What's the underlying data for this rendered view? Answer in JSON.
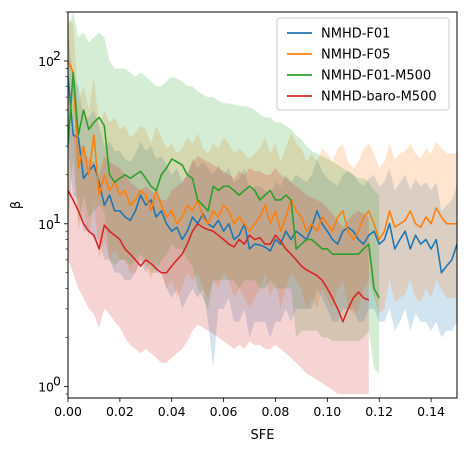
{
  "chart_data": {
    "type": "line",
    "xlabel": "SFE",
    "ylabel": "β",
    "xlim": [
      0.0,
      0.15
    ],
    "ylim": [
      0.85,
      200
    ],
    "yscale": "log",
    "xticks": [
      0.0,
      0.02,
      0.04,
      0.06,
      0.08,
      0.1,
      0.12,
      0.14
    ],
    "xtick_labels": [
      "0.00",
      "0.02",
      "0.04",
      "0.06",
      "0.08",
      "0.10",
      "0.12",
      "0.14"
    ],
    "yticks": [
      1,
      10,
      100
    ],
    "ytick_labels": [
      "10",
      "10",
      "10"
    ],
    "ytick_exponents": [
      "0",
      "1",
      "2"
    ],
    "grid": false,
    "legend_position": "top-right",
    "series": [
      {
        "name": "NMHD-F01",
        "color": "#1f77b4",
        "x": [
          0.0,
          0.002,
          0.004,
          0.006,
          0.008,
          0.01,
          0.012,
          0.014,
          0.016,
          0.018,
          0.02,
          0.022,
          0.024,
          0.026,
          0.028,
          0.03,
          0.032,
          0.034,
          0.036,
          0.038,
          0.04,
          0.042,
          0.044,
          0.046,
          0.048,
          0.05,
          0.052,
          0.054,
          0.056,
          0.058,
          0.06,
          0.062,
          0.064,
          0.066,
          0.068,
          0.07,
          0.072,
          0.074,
          0.076,
          0.078,
          0.08,
          0.082,
          0.084,
          0.086,
          0.088,
          0.09,
          0.092,
          0.094,
          0.096,
          0.098,
          0.1,
          0.102,
          0.104,
          0.106,
          0.108,
          0.11,
          0.112,
          0.114,
          0.116,
          0.118,
          0.12,
          0.122,
          0.124,
          0.126,
          0.128,
          0.13,
          0.132,
          0.134,
          0.136,
          0.138,
          0.14,
          0.142,
          0.144,
          0.146,
          0.148,
          0.15
        ],
        "values": [
          80,
          35,
          34,
          19,
          21,
          23,
          18,
          13,
          15,
          12,
          12,
          11,
          10.5,
          12,
          15,
          13,
          14,
          11,
          12,
          10,
          9,
          9.5,
          8,
          9,
          11,
          10,
          11.5,
          10,
          9.5,
          10.5,
          9,
          10,
          8,
          8.5,
          10,
          7,
          7.5,
          7.4,
          7.2,
          6.8,
          8,
          7.5,
          9,
          8,
          9,
          8.5,
          8,
          9.5,
          12,
          10,
          9,
          8,
          7.5,
          9,
          9.5,
          9,
          8,
          7.5,
          8.5,
          9,
          7.5,
          8,
          10,
          7,
          8,
          9,
          7,
          8.5,
          7.5,
          8,
          7,
          8,
          5,
          5.5,
          6,
          7.5
        ],
        "lower": [
          30,
          15,
          14,
          9,
          9,
          8,
          8,
          6,
          6,
          5,
          5,
          4.5,
          4.5,
          5,
          6,
          5,
          6,
          5,
          5,
          4,
          3.5,
          4,
          3,
          3.5,
          4,
          3.5,
          4,
          2.5,
          1.3,
          3,
          3,
          3.5,
          2.5,
          2.5,
          3,
          2,
          2.5,
          2.5,
          2.5,
          2,
          2.5,
          2.5,
          3,
          2.5,
          3,
          3,
          3,
          3,
          4,
          3.5,
          3,
          2.5,
          2.5,
          3,
          3,
          3,
          2.5,
          2.5,
          3,
          3,
          2.5,
          2.5,
          3,
          2.2,
          2.5,
          3,
          2.2,
          2.8,
          2.5,
          2.5,
          2.2,
          2.5,
          2,
          2.2,
          2.2,
          2.5
        ],
        "upper": [
          150,
          80,
          70,
          45,
          45,
          50,
          40,
          30,
          32,
          28,
          28,
          25,
          24,
          27,
          32,
          28,
          30,
          25,
          26,
          23,
          20,
          22,
          18,
          20,
          25,
          22,
          24,
          22,
          20,
          23,
          20,
          22,
          18,
          19,
          22,
          16,
          17,
          17,
          16,
          15,
          18,
          17,
          20,
          18,
          20,
          19,
          18,
          20,
          25,
          21,
          19,
          18,
          17,
          20,
          21,
          20,
          18,
          17,
          19,
          20,
          17,
          18,
          22,
          16,
          18,
          20,
          16,
          19,
          17,
          18,
          16,
          18,
          12,
          13,
          14,
          17
        ]
      },
      {
        "name": "NMHD-F05",
        "color": "#ff7f0e",
        "x": [
          0.0,
          0.002,
          0.004,
          0.006,
          0.008,
          0.01,
          0.012,
          0.014,
          0.016,
          0.018,
          0.02,
          0.022,
          0.024,
          0.026,
          0.028,
          0.03,
          0.032,
          0.034,
          0.036,
          0.038,
          0.04,
          0.042,
          0.044,
          0.046,
          0.048,
          0.05,
          0.052,
          0.054,
          0.056,
          0.058,
          0.06,
          0.062,
          0.064,
          0.066,
          0.068,
          0.07,
          0.072,
          0.074,
          0.076,
          0.078,
          0.08,
          0.082,
          0.084,
          0.086,
          0.088,
          0.09,
          0.092,
          0.094,
          0.096,
          0.098,
          0.1,
          0.102,
          0.104,
          0.106,
          0.108,
          0.11,
          0.112,
          0.114,
          0.116,
          0.118,
          0.12,
          0.122,
          0.124,
          0.126,
          0.128,
          0.13,
          0.132,
          0.134,
          0.136,
          0.138,
          0.14,
          0.142,
          0.144,
          0.146,
          0.148,
          0.15
        ],
        "values": [
          100,
          85,
          22,
          30,
          20,
          35,
          15,
          20,
          16,
          18,
          15,
          16,
          13,
          14,
          16,
          15,
          12,
          16,
          13,
          11,
          12,
          10,
          11,
          13,
          12,
          14,
          11,
          10,
          12,
          11,
          13,
          12,
          10,
          11,
          10,
          9,
          10,
          11,
          13,
          10,
          12,
          9,
          11,
          14,
          12,
          11,
          9,
          10,
          9,
          11,
          10,
          9,
          11,
          12,
          9,
          8,
          9,
          11,
          12,
          10,
          8,
          9,
          12,
          9.5,
          10,
          10.5,
          12,
          10,
          9.5,
          11,
          10,
          12.5,
          11,
          10,
          10,
          10
        ],
        "lower": [
          40,
          40,
          9,
          12,
          8,
          14,
          6,
          8,
          6,
          7,
          6,
          6,
          5,
          5,
          6,
          5.5,
          4.5,
          6,
          5,
          4,
          4.5,
          3.5,
          4,
          5,
          4.5,
          5,
          4,
          3.5,
          4.5,
          4,
          5,
          4.5,
          3.5,
          4,
          3.5,
          3,
          3.5,
          4,
          5,
          3.5,
          4.5,
          3,
          4,
          5,
          4.5,
          4,
          3,
          3.5,
          3,
          4,
          3.5,
          3,
          4,
          4.5,
          3,
          2.8,
          3,
          4,
          4.5,
          3.5,
          2.8,
          3,
          4.5,
          3.3,
          3.5,
          3.7,
          4.5,
          3.5,
          3.3,
          4,
          3.5,
          4.5,
          4,
          3.5,
          3.5,
          3.5
        ],
        "upper": [
          180,
          170,
          55,
          70,
          50,
          80,
          40,
          50,
          42,
          45,
          38,
          40,
          34,
          36,
          40,
          38,
          31,
          40,
          34,
          29,
          31,
          27,
          29,
          34,
          31,
          36,
          29,
          27,
          31,
          29,
          34,
          31,
          27,
          29,
          27,
          25,
          27,
          29,
          34,
          27,
          31,
          24,
          29,
          36,
          31,
          29,
          24,
          27,
          24,
          29,
          27,
          24,
          29,
          31,
          24,
          22,
          24,
          29,
          31,
          27,
          22,
          24,
          31,
          25,
          27,
          28,
          31,
          27,
          25,
          29,
          27,
          32,
          29,
          27,
          27,
          27
        ]
      },
      {
        "name": "NMHD-F01-M500",
        "color": "#2ca02c",
        "x": [
          0.0,
          0.002,
          0.004,
          0.006,
          0.008,
          0.01,
          0.012,
          0.014,
          0.016,
          0.018,
          0.02,
          0.022,
          0.024,
          0.026,
          0.028,
          0.03,
          0.032,
          0.034,
          0.036,
          0.038,
          0.04,
          0.042,
          0.044,
          0.046,
          0.048,
          0.05,
          0.052,
          0.054,
          0.056,
          0.058,
          0.06,
          0.062,
          0.064,
          0.066,
          0.068,
          0.07,
          0.072,
          0.074,
          0.076,
          0.078,
          0.08,
          0.082,
          0.084,
          0.086,
          0.088,
          0.09,
          0.092,
          0.094,
          0.096,
          0.098,
          0.1,
          0.102,
          0.104,
          0.106,
          0.108,
          0.11,
          0.112,
          0.114,
          0.116,
          0.118,
          0.12
        ],
        "values": [
          30,
          85,
          35,
          50,
          38,
          42,
          45,
          40,
          20,
          18,
          19,
          20,
          19,
          20,
          21,
          19,
          17,
          16,
          20,
          22,
          25,
          24,
          23,
          20,
          19,
          14,
          13,
          12,
          17,
          16,
          17,
          17,
          16,
          15,
          16,
          17,
          16,
          14,
          15,
          16,
          14,
          14,
          15,
          14,
          7,
          7.5,
          8,
          8,
          7.5,
          7,
          7,
          6.5,
          6.5,
          6.5,
          6.5,
          6.5,
          6.5,
          7,
          7.5,
          4,
          3.5
        ],
        "lower": [
          10,
          25,
          10,
          15,
          11,
          12,
          13,
          12,
          6,
          5.5,
          6,
          6,
          5.5,
          6,
          6.5,
          6,
          5,
          5,
          6,
          6.5,
          7.5,
          7,
          7,
          6,
          5.5,
          4,
          3.5,
          3,
          4.5,
          4.5,
          4.5,
          4.5,
          4.5,
          4,
          4.5,
          4.5,
          4.5,
          4,
          4,
          4.5,
          4,
          4,
          4,
          4,
          2,
          2.2,
          2.2,
          2.2,
          2.2,
          2,
          2,
          1.9,
          1.9,
          1.9,
          1.9,
          1.9,
          1.9,
          2,
          2.2,
          1.3,
          1.2
        ],
        "upper": [
          160,
          200,
          140,
          150,
          130,
          140,
          150,
          140,
          100,
          90,
          90,
          90,
          85,
          80,
          85,
          80,
          75,
          70,
          70,
          75,
          80,
          78,
          75,
          70,
          70,
          65,
          62,
          60,
          60,
          57,
          55,
          55,
          54,
          53,
          53,
          52,
          50,
          47,
          45,
          45,
          42,
          42,
          40,
          38,
          35,
          33,
          30,
          28,
          27,
          26,
          25,
          24,
          23,
          22,
          21,
          20,
          19,
          19,
          18,
          16,
          15
        ]
      },
      {
        "name": "NMHD-baro-M500",
        "color": "#d62728",
        "x": [
          0.0,
          0.002,
          0.004,
          0.006,
          0.008,
          0.01,
          0.012,
          0.014,
          0.016,
          0.018,
          0.02,
          0.022,
          0.024,
          0.026,
          0.028,
          0.03,
          0.032,
          0.034,
          0.036,
          0.038,
          0.04,
          0.042,
          0.044,
          0.046,
          0.048,
          0.05,
          0.052,
          0.054,
          0.056,
          0.058,
          0.06,
          0.062,
          0.064,
          0.066,
          0.068,
          0.07,
          0.072,
          0.074,
          0.076,
          0.078,
          0.08,
          0.082,
          0.084,
          0.086,
          0.088,
          0.09,
          0.092,
          0.094,
          0.096,
          0.098,
          0.1,
          0.102,
          0.104,
          0.106,
          0.108,
          0.11,
          0.112,
          0.114,
          0.116
        ],
        "values": [
          16,
          14,
          12,
          10,
          9,
          8.5,
          7,
          9.8,
          9,
          8.5,
          8,
          7,
          6.5,
          6,
          5.5,
          6,
          5.7,
          5.3,
          5,
          5,
          5.5,
          6,
          6.5,
          7.5,
          9,
          10,
          9.5,
          9.2,
          9,
          8.5,
          8,
          7.5,
          7.2,
          8,
          7.5,
          8.5,
          8,
          8.2,
          7.5,
          7.5,
          8.5,
          7.8,
          7,
          6.5,
          6,
          5.5,
          5.2,
          5,
          4.8,
          4.5,
          4,
          3.5,
          3,
          2.5,
          3,
          3.5,
          3.8,
          3.5,
          3.4
        ],
        "lower": [
          6,
          5,
          4,
          3.5,
          3,
          2.8,
          2.3,
          3,
          2.8,
          2.5,
          2.3,
          2,
          1.8,
          1.7,
          1.6,
          1.7,
          1.6,
          1.5,
          1.4,
          1.4,
          1.5,
          1.6,
          1.7,
          1.9,
          2.2,
          2.4,
          2.3,
          2.2,
          2.1,
          2,
          1.9,
          1.8,
          1.7,
          1.8,
          1.7,
          1.9,
          1.8,
          1.8,
          1.7,
          1.7,
          1.8,
          1.7,
          1.6,
          1.5,
          1.4,
          1.3,
          1.2,
          1.15,
          1.1,
          1.05,
          1,
          0.95,
          0.9,
          0.9,
          0.9,
          0.9,
          0.9,
          0.9,
          0.9
        ],
        "upper": [
          40,
          38,
          32,
          28,
          25,
          24,
          20,
          26,
          24,
          23,
          22,
          20,
          18,
          17,
          16,
          17,
          16,
          15,
          14,
          14,
          16,
          17,
          18,
          20,
          24,
          26,
          25,
          24,
          23,
          22,
          21,
          20,
          19,
          21,
          20,
          22,
          21,
          21,
          20,
          20,
          22,
          20,
          19,
          18,
          17,
          16,
          15,
          14.5,
          14,
          13.5,
          12.5,
          11.5,
          10.5,
          9.5,
          10.5,
          11.5,
          12,
          11.5,
          11
        ]
      }
    ]
  }
}
